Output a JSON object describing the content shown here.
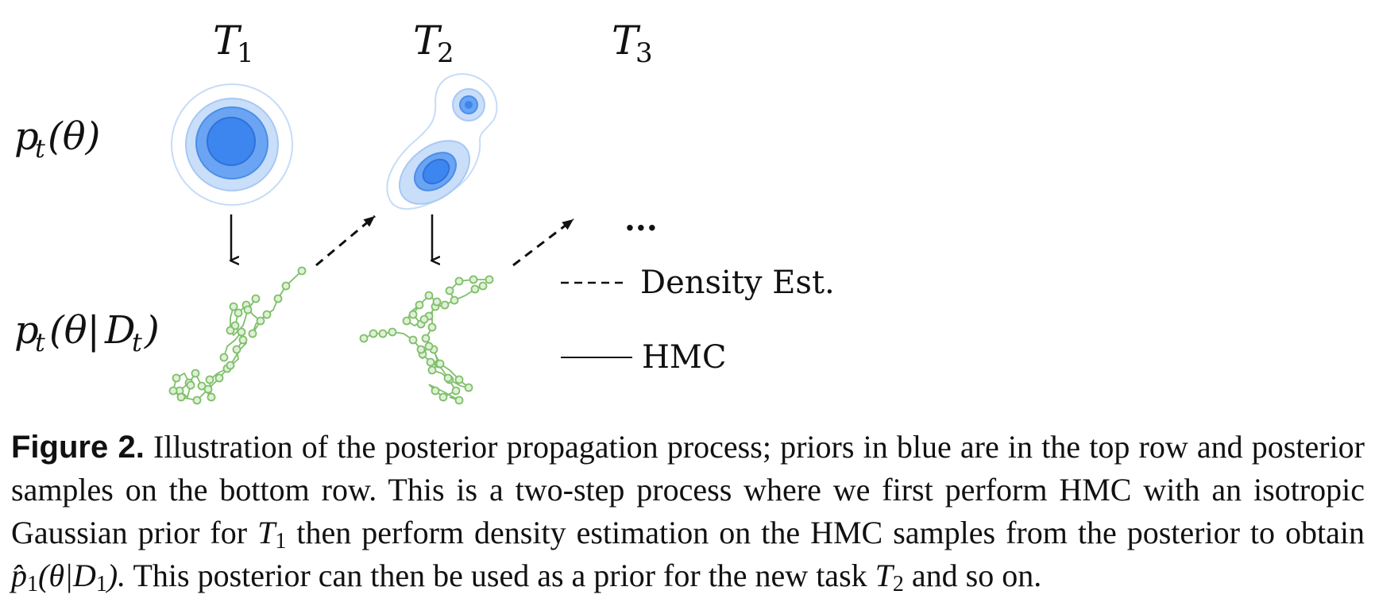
{
  "tasks": {
    "t1": {
      "symbol": "T",
      "sub": "1"
    },
    "t2": {
      "symbol": "T",
      "sub": "2"
    },
    "t3": {
      "symbol": "T",
      "sub": "3"
    }
  },
  "rows": {
    "prior": {
      "p": "p",
      "sub": "t",
      "rest": "(θ)"
    },
    "posterior": {
      "p": "p",
      "sub": "t",
      "open": "(θ|",
      "cal": "D",
      "calsub": "t",
      "close": ")"
    }
  },
  "ellipsis": "...",
  "legend": {
    "density": "Density Est.",
    "hmc": "HMC"
  },
  "colors": {
    "prior_blue": "#3d86f0",
    "sample_green": "#7fbf6a",
    "arrow": "#111111"
  },
  "caption": {
    "label": "Figure 2.",
    "part1": "Illustration of the posterior propagation process; priors in blue are in the top row and posterior samples on the bottom row. This is a two-step process where we first perform HMC with an isotropic Gaussian prior for",
    "t1_sym": "T",
    "t1_sub": "1",
    "part2": "then perform density estimation on the HMC samples from the posterior to obtain",
    "phat": "p̂",
    "phat_sub": "1",
    "phat_open": "(θ|",
    "phat_cal": "D",
    "phat_calsub": "1",
    "phat_close": ").",
    "part3": "This posterior can then be used as a prior for the new task",
    "t2_sym": "T",
    "t2_sub": "2",
    "part4": "and so on."
  }
}
